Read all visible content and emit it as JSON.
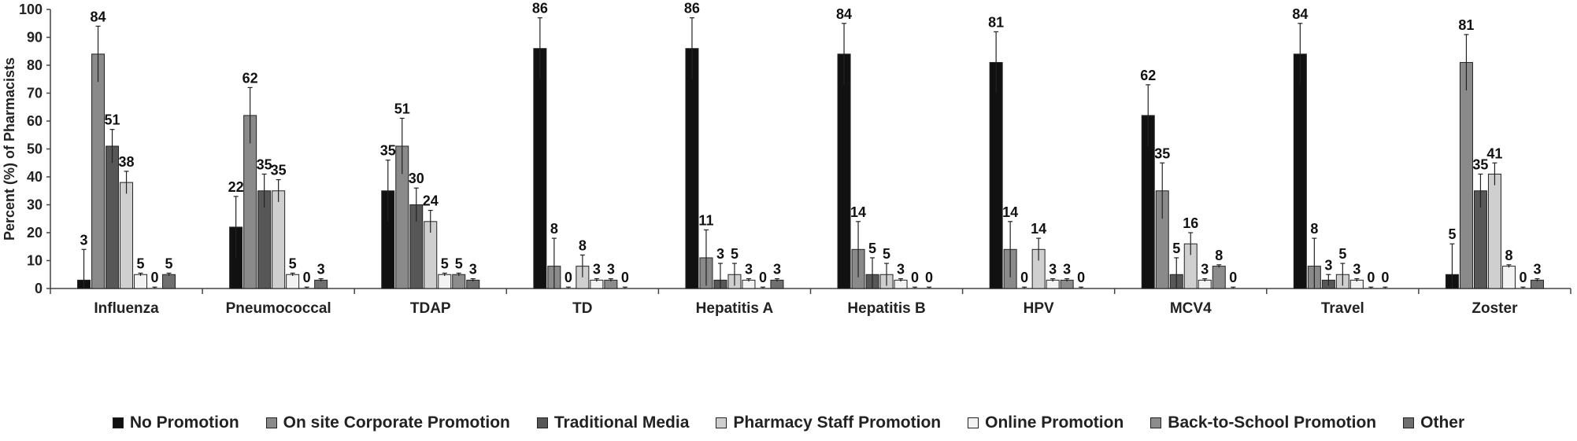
{
  "chart_data": {
    "type": "bar",
    "title": "",
    "xlabel": "",
    "ylabel": "Percent (%) of Pharmacists",
    "ylim": [
      0,
      100
    ],
    "yticks": [
      0,
      10,
      20,
      30,
      40,
      50,
      60,
      70,
      80,
      90,
      100
    ],
    "legend_position": "bottom",
    "categories": [
      "Influenza",
      "Pneumococcal",
      "TDAP",
      "TD",
      "Hepatitis A",
      "Hepatitis B",
      "HPV",
      "MCV4",
      "Travel",
      "Zoster"
    ],
    "series": [
      {
        "name": "No Promotion",
        "color": "#111111",
        "values": [
          3,
          22,
          35,
          86,
          86,
          84,
          81,
          62,
          84,
          5
        ],
        "labels": [
          "3",
          "22",
          "35",
          "86",
          "86",
          "84",
          "81",
          "62",
          "84",
          "5"
        ],
        "error": [
          11,
          11,
          11,
          11,
          11,
          11,
          11,
          11,
          11,
          11
        ]
      },
      {
        "name": "On site Corporate Promotion",
        "color": "#8a8a8a",
        "values": [
          84,
          62,
          51,
          8,
          11,
          14,
          14,
          35,
          8,
          81
        ],
        "labels": [
          "84",
          "62",
          "51",
          "8",
          "11",
          "14",
          "14",
          "35",
          "8",
          "81"
        ],
        "error": [
          10,
          10,
          10,
          10,
          10,
          10,
          10,
          10,
          10,
          10
        ]
      },
      {
        "name": "Traditional Media",
        "color": "#575757",
        "values": [
          51,
          35,
          30,
          0,
          3,
          5,
          0,
          5,
          3,
          35
        ],
        "labels": [
          "51",
          "35",
          "30",
          "0",
          "3",
          "5",
          "0",
          "5",
          "3",
          "35"
        ],
        "error": [
          6,
          6,
          6,
          0.5,
          6,
          6,
          0.5,
          6,
          2,
          6
        ]
      },
      {
        "name": "Pharmacy Staff Promotion",
        "color": "#cfcfcf",
        "values": [
          38,
          35,
          24,
          8,
          5,
          5,
          14,
          16,
          5,
          41
        ],
        "labels": [
          "38",
          "35",
          "24",
          "8",
          "5",
          "5",
          "14",
          "16",
          "5",
          "41"
        ],
        "error": [
          4,
          4,
          4,
          4,
          4,
          4,
          4,
          4,
          4,
          4
        ]
      },
      {
        "name": "Online Promotion",
        "color": "#f3f3f3",
        "values": [
          5,
          5,
          5,
          3,
          3,
          3,
          3,
          3,
          3,
          8
        ],
        "labels": [
          "5",
          "5",
          "5",
          "3",
          "3",
          "3",
          "3",
          "3",
          "3",
          "8"
        ],
        "error": [
          0.5,
          0.5,
          0.5,
          0.5,
          0.5,
          0.5,
          0.5,
          0.5,
          0.5,
          0.5
        ]
      },
      {
        "name": "Back-to-School Promotion",
        "color": "#8c8c8c",
        "values": [
          0,
          0,
          5,
          3,
          0,
          0,
          3,
          8,
          0,
          0
        ],
        "labels": [
          "0",
          "0",
          "5",
          "3",
          "0",
          "0",
          "3",
          "8",
          "0",
          "0"
        ],
        "error": [
          0.5,
          0.5,
          0.5,
          0.5,
          0.5,
          0.5,
          0.5,
          0.5,
          0.5,
          0.5
        ]
      },
      {
        "name": "Other",
        "color": "#6f6f6f",
        "values": [
          5,
          3,
          3,
          0,
          3,
          0,
          0,
          0,
          0,
          3
        ],
        "labels": [
          "5",
          "3",
          "3",
          "0",
          "3",
          "0",
          "0",
          "0",
          "0",
          "3"
        ],
        "error": [
          0.5,
          0.5,
          0.5,
          0.5,
          0.5,
          0.5,
          0.5,
          0.5,
          0.5,
          0.5
        ]
      }
    ]
  }
}
